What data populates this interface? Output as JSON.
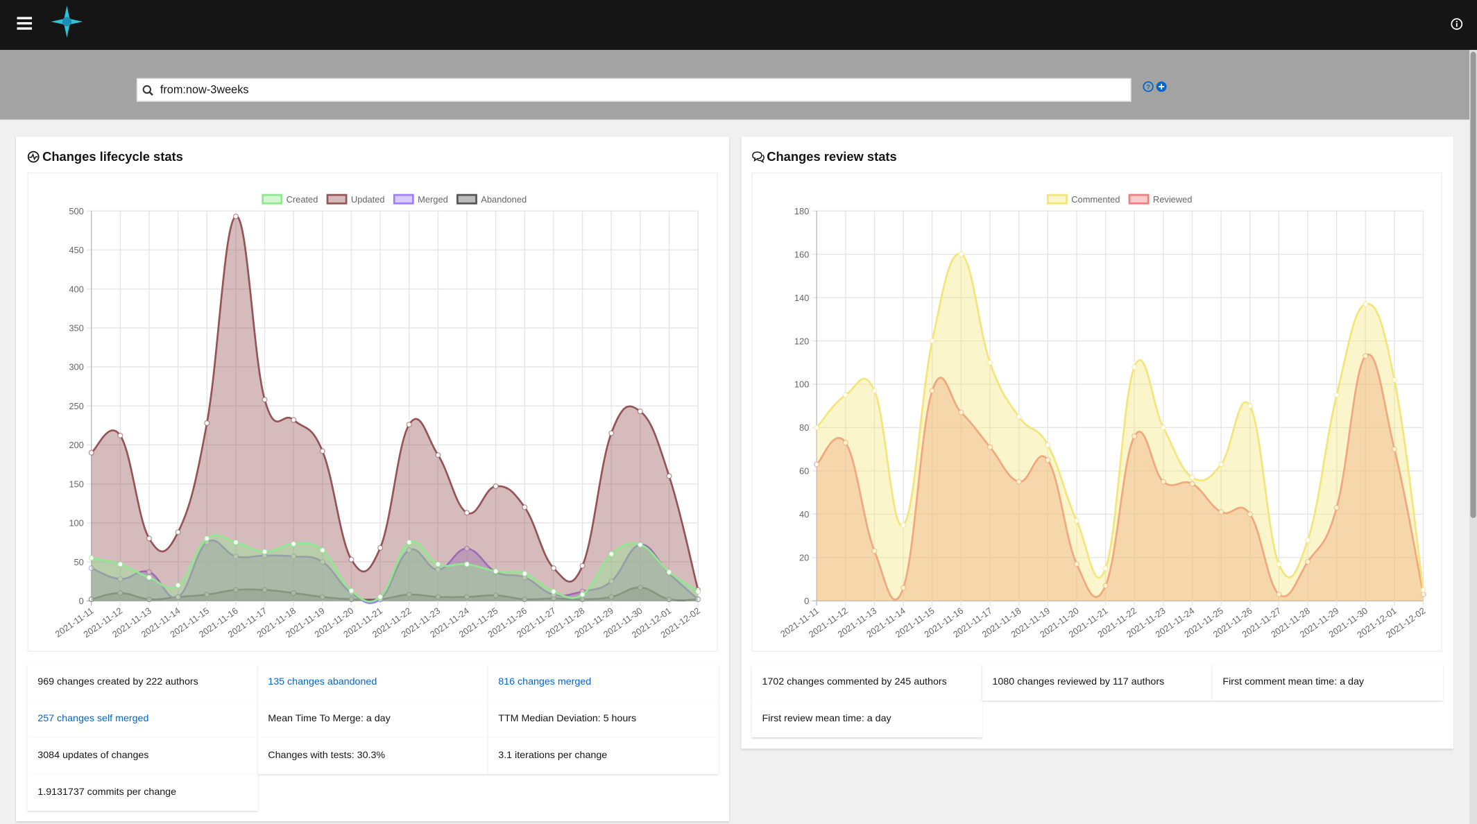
{
  "header": {
    "search": "from:now-3weeks"
  },
  "panels": [
    {
      "title": "Changes lifecycle stats",
      "stats": [
        {
          "text": "969 changes created by 222 authors",
          "link": false
        },
        {
          "text": "135 changes abandoned",
          "link": true
        },
        {
          "text": "816 changes merged",
          "link": true
        },
        {
          "text": "257 changes self merged",
          "link": true
        },
        {
          "text": "Mean Time To Merge: a day",
          "link": false
        },
        {
          "text": "TTM Median Deviation: 5 hours",
          "link": false
        },
        {
          "text": "3084 updates of changes",
          "link": false
        },
        {
          "text": "Changes with tests: 30.3%",
          "link": false
        },
        {
          "text": "3.1 iterations per change",
          "link": false
        },
        {
          "text": "1.9131737 commits per change",
          "link": false
        }
      ]
    },
    {
      "title": "Changes review stats",
      "stats": [
        {
          "text": "1702 changes commented by 245 authors",
          "link": false
        },
        {
          "text": "1080 changes reviewed by 117 authors",
          "link": false
        },
        {
          "text": "First comment mean time: a day",
          "link": false
        },
        {
          "text": "First review mean time: a day",
          "link": false
        }
      ]
    }
  ],
  "chart_data": [
    {
      "type": "line",
      "area": true,
      "grid": true,
      "legend": "top",
      "categories": [
        "2021-11-11",
        "2021-11-12",
        "2021-11-13",
        "2021-11-14",
        "2021-11-15",
        "2021-11-16",
        "2021-11-17",
        "2021-11-18",
        "2021-11-19",
        "2021-11-20",
        "2021-11-21",
        "2021-11-22",
        "2021-11-23",
        "2021-11-24",
        "2021-11-25",
        "2021-11-26",
        "2021-11-27",
        "2021-11-28",
        "2021-11-29",
        "2021-11-30",
        "2021-12-01",
        "2021-12-02"
      ],
      "series": [
        {
          "name": "Created",
          "color": "#8fe88f",
          "values": [
            55,
            47,
            30,
            20,
            80,
            75,
            63,
            73,
            65,
            13,
            5,
            75,
            47,
            47,
            38,
            35,
            12,
            8,
            60,
            72,
            37,
            12
          ]
        },
        {
          "name": "Updated",
          "color": "#955557",
          "values": [
            190,
            212,
            80,
            88,
            228,
            493,
            258,
            232,
            192,
            53,
            68,
            226,
            187,
            113,
            147,
            120,
            42,
            45,
            215,
            243,
            160,
            14
          ]
        },
        {
          "name": "Merged",
          "color": "#9f7ff2",
          "values": [
            42,
            28,
            37,
            5,
            75,
            57,
            58,
            57,
            50,
            10,
            2,
            65,
            40,
            67,
            37,
            30,
            8,
            12,
            25,
            72,
            35,
            2
          ]
        },
        {
          "name": "Abandoned",
          "color": "#555555",
          "values": [
            2,
            10,
            2,
            5,
            8,
            14,
            14,
            10,
            5,
            2,
            2,
            8,
            5,
            5,
            7,
            2,
            3,
            2,
            5,
            17,
            2,
            2
          ]
        }
      ],
      "ylim": [
        0,
        500
      ],
      "yticks": [
        0,
        50,
        100,
        150,
        200,
        250,
        300,
        350,
        400,
        450,
        500
      ]
    },
    {
      "type": "line",
      "area": true,
      "grid": true,
      "legend": "top",
      "categories": [
        "2021-11-11",
        "2021-11-12",
        "2021-11-13",
        "2021-11-14",
        "2021-11-15",
        "2021-11-16",
        "2021-11-17",
        "2021-11-18",
        "2021-11-19",
        "2021-11-20",
        "2021-11-21",
        "2021-11-22",
        "2021-11-23",
        "2021-11-24",
        "2021-11-25",
        "2021-11-26",
        "2021-11-27",
        "2021-11-28",
        "2021-11-29",
        "2021-11-30",
        "2021-12-01",
        "2021-12-02"
      ],
      "series": [
        {
          "name": "Commented",
          "color": "#f3e57a",
          "values": [
            80,
            95,
            97,
            35,
            120,
            160,
            110,
            85,
            72,
            37,
            15,
            108,
            80,
            57,
            63,
            90,
            17,
            28,
            95,
            137,
            102,
            5
          ]
        },
        {
          "name": "Reviewed",
          "color": "#ee7f7f",
          "values": [
            63,
            73,
            23,
            6,
            97,
            87,
            71,
            55,
            65,
            17,
            7,
            76,
            55,
            54,
            41,
            40,
            3,
            18,
            43,
            113,
            70,
            3
          ]
        }
      ],
      "ylim": [
        0,
        180
      ],
      "yticks": [
        0,
        20,
        40,
        60,
        80,
        100,
        120,
        140,
        160,
        180
      ]
    }
  ]
}
